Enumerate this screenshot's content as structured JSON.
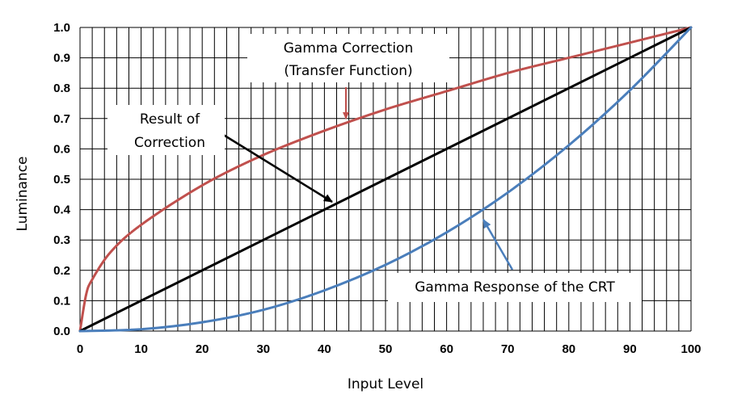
{
  "chart_data": {
    "type": "line",
    "xlabel": "Input Level",
    "ylabel": "Luminance",
    "xlim": [
      0,
      100
    ],
    "ylim": [
      0,
      1.0
    ],
    "x_ticks": [
      "0",
      "10",
      "20",
      "30",
      "40",
      "50",
      "60",
      "70",
      "80",
      "90",
      "100"
    ],
    "y_ticks": [
      "0.0",
      "0.1",
      "0.2",
      "0.3",
      "0.4",
      "0.5",
      "0.6",
      "0.7",
      "0.8",
      "0.9",
      "1.0"
    ],
    "grid": {
      "vertical_every": 2,
      "horizontal_every": 0.1
    },
    "series": [
      {
        "color": "#c0504d",
        "x": [
          0,
          1,
          2,
          5,
          10,
          20,
          30,
          40,
          50,
          60,
          70,
          80,
          90,
          100
        ],
        "y": [
          0,
          0.12,
          0.17,
          0.26,
          0.35,
          0.48,
          0.58,
          0.66,
          0.73,
          0.79,
          0.85,
          0.9,
          0.95,
          1.0
        ]
      },
      {
        "color": "#000000",
        "x": [
          0,
          100
        ],
        "y": [
          0,
          1.0
        ]
      },
      {
        "color": "#4a7ebb",
        "x": [
          0,
          10,
          20,
          30,
          40,
          50,
          60,
          70,
          80,
          90,
          100
        ],
        "y": [
          0,
          0.006,
          0.029,
          0.07,
          0.134,
          0.218,
          0.325,
          0.456,
          0.612,
          0.793,
          1.0
        ]
      }
    ],
    "annotations": [
      {
        "lines": [
          "Gamma Correction",
          "(Transfer Function)"
        ],
        "color": "#c0504d",
        "target": [
          43.5,
          0.69
        ]
      },
      {
        "lines": [
          "Result of",
          "Correction"
        ],
        "color": "#000000",
        "target": [
          41,
          0.41
        ]
      },
      {
        "lines": [
          "Gamma Response of the CRT"
        ],
        "color": "#4a7ebb",
        "target": [
          66,
          0.37
        ]
      }
    ]
  }
}
